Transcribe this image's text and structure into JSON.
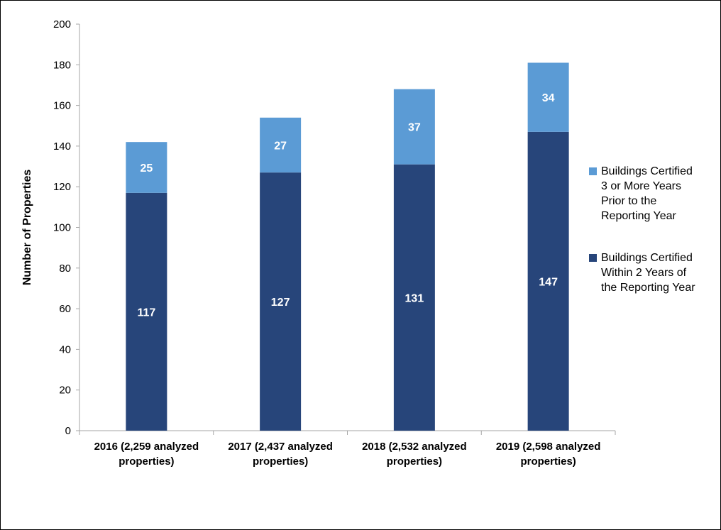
{
  "colors": {
    "within": "#27457a",
    "prior": "#5b9bd5",
    "axis": "#a6a6a6"
  },
  "chart_data": {
    "type": "bar",
    "stacked": true,
    "categories": [
      "2016 (2,259 analyzed\nproperties)",
      "2017 (2,437 analyzed\nproperties)",
      "2018 (2,532 analyzed\nproperties)",
      "2019 (2,598 analyzed\nproperties)"
    ],
    "series": [
      {
        "name": "Buildings Certified Within 2 Years of the Reporting Year",
        "values": [
          117,
          127,
          131,
          147
        ]
      },
      {
        "name": "Buildings Certified 3 or More Years Prior to the Reporting Year",
        "values": [
          25,
          27,
          37,
          34
        ]
      }
    ],
    "ylabel": "Number of Properties",
    "xlabel": "",
    "ylim": [
      0,
      200
    ],
    "yticks": [
      0,
      20,
      40,
      60,
      80,
      100,
      120,
      140,
      160,
      180,
      200
    ],
    "grid": false,
    "legend": "right",
    "data_labels": true
  },
  "legend": {
    "items": [
      {
        "label": "Buildings Certified\n3 or More Years\nPrior to the\nReporting Year",
        "color_key": "prior"
      },
      {
        "label": "Buildings Certified\nWithin 2 Years of\nthe Reporting Year",
        "color_key": "within"
      }
    ]
  }
}
